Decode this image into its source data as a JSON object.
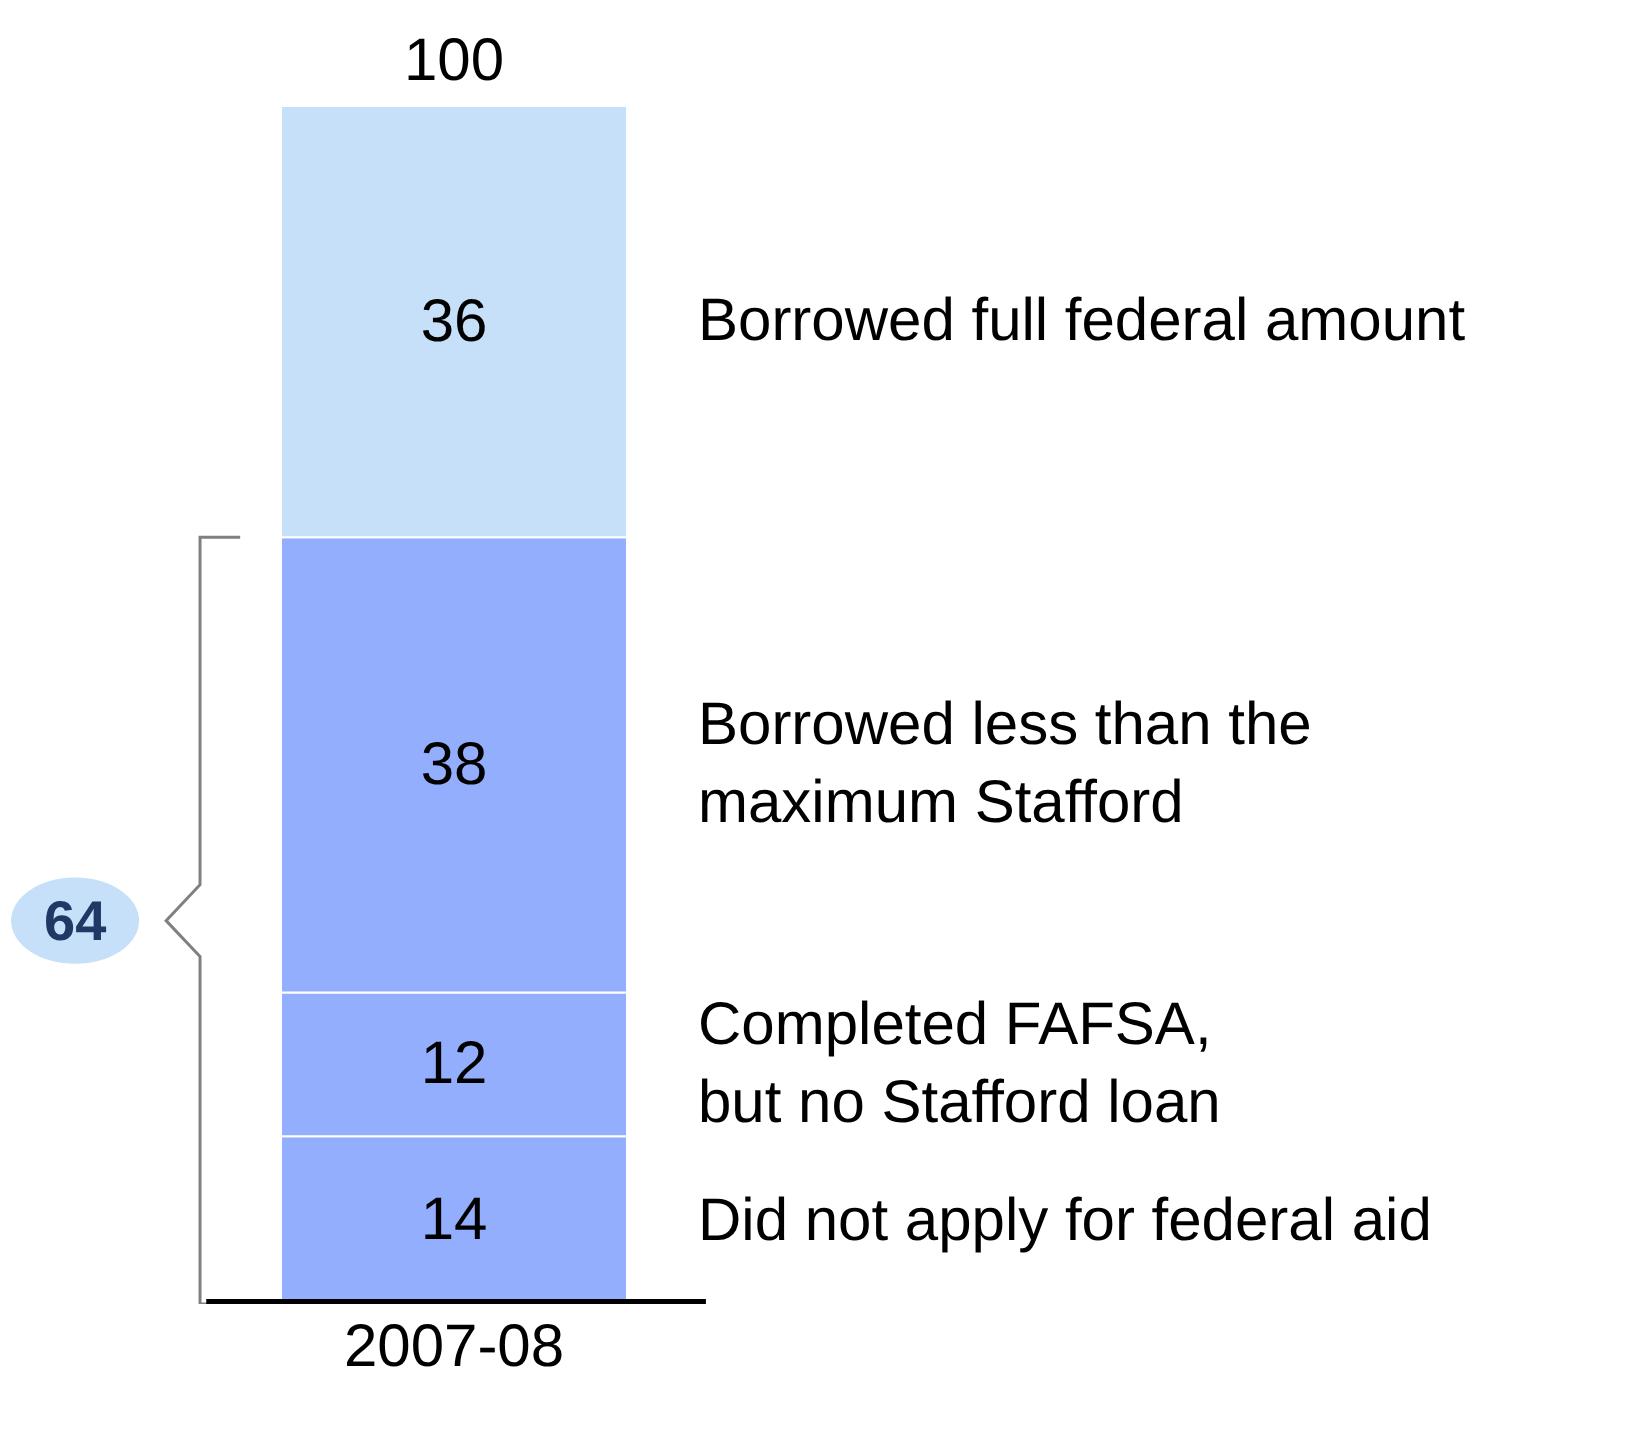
{
  "chart_data": {
    "type": "bar",
    "stacked": true,
    "categories": [
      "2007-08"
    ],
    "series": [
      {
        "name": "Did not apply for federal aid",
        "color": "#94aefe",
        "values": [
          14
        ]
      },
      {
        "name": "Completed FAFSA,\nbut no Stafford loan",
        "color": "#94aefe",
        "values": [
          12
        ]
      },
      {
        "name": "Borrowed less than the\nmaximum Stafford",
        "color": "#94aefe",
        "values": [
          38
        ]
      },
      {
        "name": "Borrowed full federal amount",
        "color": "#c6e0fa",
        "values": [
          36
        ]
      }
    ],
    "data_labels": true,
    "totals": [
      "100"
    ],
    "annotations": [
      "64"
    ],
    "legend": false,
    "tick_labels": "x"
  }
}
